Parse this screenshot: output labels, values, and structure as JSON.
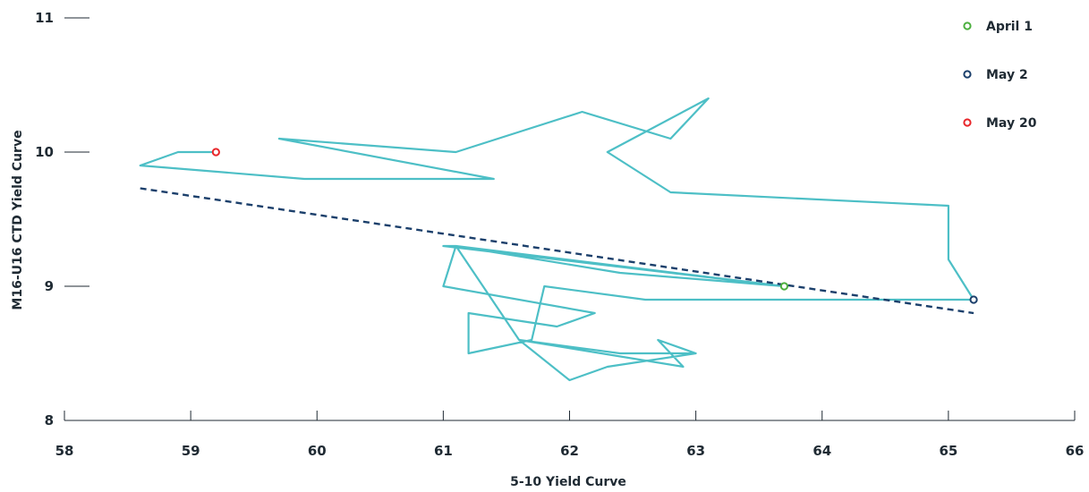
{
  "chart_data": {
    "type": "scatter",
    "title": "",
    "xlabel": "5-10 Yield Curve",
    "ylabel": "M16-U16 CTD Yield Curve",
    "xlim": [
      58,
      66
    ],
    "ylim": [
      8,
      11
    ],
    "x_ticks": [
      "58",
      "59",
      "60",
      "61",
      "62",
      "63",
      "64",
      "65",
      "66"
    ],
    "y_ticks": [
      "8",
      "9",
      "10",
      "11"
    ],
    "grid": false,
    "legend_position": "top-right",
    "path": {
      "color": "#4dbfc6",
      "points": [
        [
          59.2,
          10.0
        ],
        [
          58.9,
          10.0
        ],
        [
          58.6,
          9.9
        ],
        [
          59.9,
          9.8
        ],
        [
          61.4,
          9.8
        ],
        [
          59.7,
          10.1
        ],
        [
          61.1,
          10.0
        ],
        [
          62.1,
          10.3
        ],
        [
          62.8,
          10.1
        ],
        [
          63.1,
          10.4
        ],
        [
          62.3,
          10.0
        ],
        [
          62.8,
          9.7
        ],
        [
          65.0,
          9.6
        ],
        [
          65.0,
          9.2
        ],
        [
          65.2,
          8.9
        ],
        [
          62.6,
          8.9
        ],
        [
          61.8,
          9.0
        ],
        [
          61.7,
          8.6
        ],
        [
          61.2,
          8.5
        ],
        [
          61.2,
          8.8
        ],
        [
          61.9,
          8.7
        ],
        [
          62.2,
          8.8
        ],
        [
          61.0,
          9.0
        ],
        [
          61.1,
          9.3
        ],
        [
          62.4,
          9.1
        ],
        [
          63.7,
          9.0
        ],
        [
          61.0,
          9.3
        ],
        [
          61.1,
          9.3
        ],
        [
          62.4,
          9.1
        ],
        [
          63.7,
          9.0
        ],
        [
          61.1,
          9.3
        ],
        [
          61.6,
          8.6
        ],
        [
          62.4,
          8.5
        ],
        [
          63.0,
          8.5
        ],
        [
          62.3,
          8.4
        ],
        [
          62.0,
          8.3
        ],
        [
          61.6,
          8.6
        ],
        [
          62.9,
          8.4
        ],
        [
          62.7,
          8.6
        ],
        [
          63.0,
          8.5
        ]
      ]
    },
    "trendline": {
      "color": "#1b3f6b",
      "style": "dashed",
      "start": [
        58.6,
        9.73
      ],
      "end": [
        65.2,
        8.8
      ]
    },
    "highlighted_points": [
      {
        "name": "April 1",
        "x": 63.7,
        "y": 9.0,
        "color": "#4caf3f"
      },
      {
        "name": "May 2",
        "x": 65.2,
        "y": 8.9,
        "color": "#1b3f6b"
      },
      {
        "name": "May 20",
        "x": 59.2,
        "y": 10.0,
        "color": "#e8262a"
      }
    ]
  }
}
